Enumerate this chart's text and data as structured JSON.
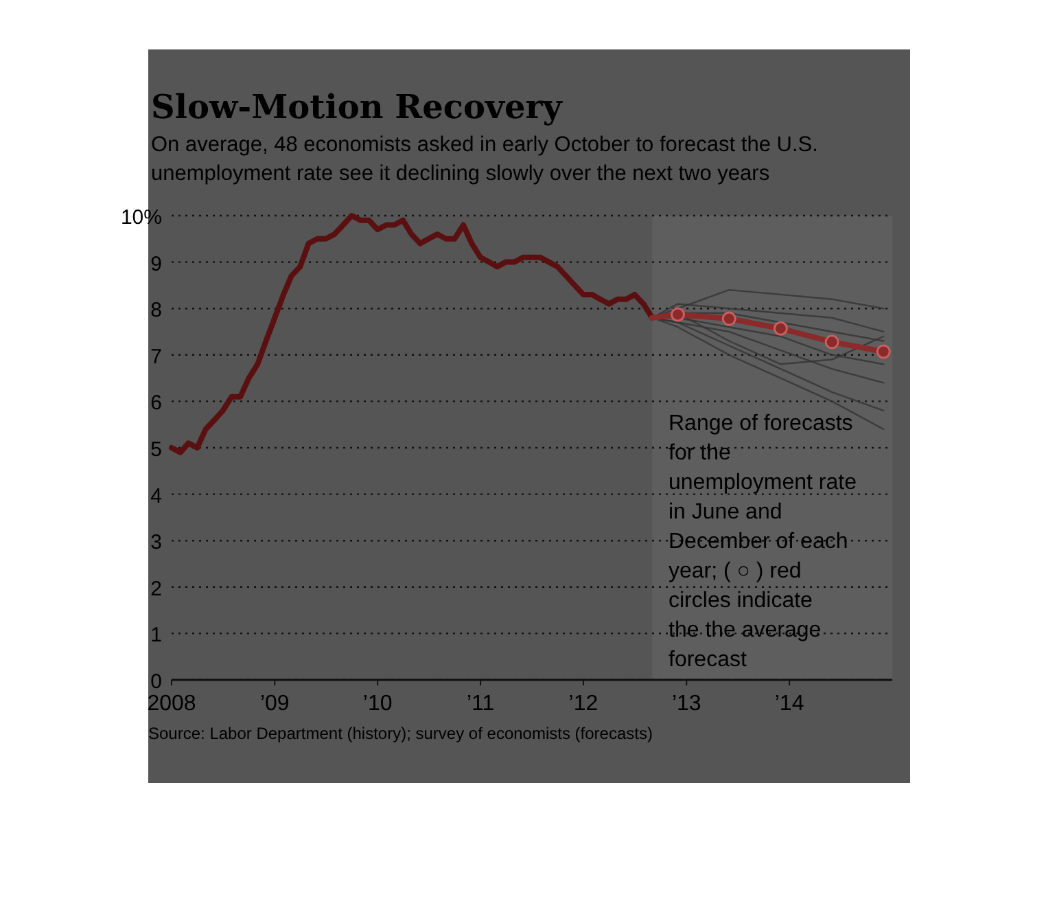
{
  "chart_data": {
    "type": "line",
    "title": "Slow-Motion Recovery",
    "subtitle": "On average, 48 economists asked in early October to forecast the U.S. unemployment rate see it declining slowly over the next two years",
    "xlim": [
      "2008-01",
      "2015-01"
    ],
    "xticks": [
      {
        "value": "2008-01",
        "label": "2008"
      },
      {
        "value": "2009-01",
        "label": "’09"
      },
      {
        "value": "2010-01",
        "label": "’10"
      },
      {
        "value": "2011-01",
        "label": "’11"
      },
      {
        "value": "2012-01",
        "label": "’12"
      },
      {
        "value": "2013-01",
        "label": "’13"
      },
      {
        "value": "2014-01",
        "label": "’14"
      }
    ],
    "ylim": [
      0,
      10
    ],
    "yticks": [
      0,
      1,
      2,
      3,
      4,
      5,
      6,
      7,
      8,
      9,
      {
        "value": 10,
        "label": "10%"
      }
    ],
    "grid": "y",
    "bands": [
      {
        "axis": "x",
        "from": "2012-09",
        "to": "2015-01",
        "color": "#5e5e5e"
      }
    ],
    "series": [
      {
        "color": "#333333",
        "x": [
          "2012-09",
          "2012-12",
          "2013-06",
          "2013-12",
          "2014-06",
          "2014-12"
        ],
        "values": [
          7.8,
          8.0,
          8.4,
          8.3,
          8.2,
          8.0
        ]
      },
      {
        "color": "#333333",
        "x": [
          "2012-09",
          "2012-12",
          "2013-06",
          "2013-12",
          "2014-06",
          "2014-12"
        ],
        "values": [
          7.8,
          8.1,
          8.0,
          7.9,
          7.8,
          7.5
        ]
      },
      {
        "color": "#333333",
        "x": [
          "2012-09",
          "2012-12",
          "2013-06",
          "2013-12",
          "2014-06",
          "2014-12"
        ],
        "values": [
          7.8,
          7.9,
          7.9,
          7.7,
          7.5,
          7.3
        ]
      },
      {
        "color": "#333333",
        "x": [
          "2012-09",
          "2012-12",
          "2013-06",
          "2013-12",
          "2014-06",
          "2014-12"
        ],
        "values": [
          7.8,
          7.8,
          7.6,
          7.4,
          7.0,
          6.8
        ]
      },
      {
        "color": "#333333",
        "x": [
          "2012-09",
          "2012-12",
          "2013-06",
          "2013-12",
          "2014-06",
          "2014-12"
        ],
        "values": [
          7.8,
          7.7,
          7.5,
          7.1,
          6.7,
          6.4
        ]
      },
      {
        "color": "#333333",
        "x": [
          "2012-09",
          "2012-12",
          "2013-06",
          "2013-12",
          "2014-06",
          "2014-12"
        ],
        "values": [
          7.8,
          7.9,
          7.3,
          6.8,
          6.9,
          7.4
        ]
      },
      {
        "color": "#333333",
        "x": [
          "2012-09",
          "2012-12",
          "2013-06",
          "2013-12",
          "2014-06",
          "2014-12"
        ],
        "values": [
          7.8,
          7.7,
          7.2,
          6.7,
          6.2,
          5.8
        ]
      },
      {
        "color": "#333333",
        "x": [
          "2012-09",
          "2012-12",
          "2013-06",
          "2013-12",
          "2014-06",
          "2014-12"
        ],
        "values": [
          7.8,
          7.6,
          7.0,
          6.5,
          6.0,
          5.4
        ]
      },
      {
        "color": "#5a1010",
        "x": [
          "2008-01",
          "2008-02",
          "2008-03",
          "2008-04",
          "2008-05",
          "2008-06",
          "2008-07",
          "2008-08",
          "2008-09",
          "2008-10",
          "2008-11",
          "2008-12",
          "2009-01",
          "2009-02",
          "2009-03",
          "2009-04",
          "2009-05",
          "2009-06",
          "2009-07",
          "2009-08",
          "2009-09",
          "2009-10",
          "2009-11",
          "2009-12",
          "2010-01",
          "2010-02",
          "2010-03",
          "2010-04",
          "2010-05",
          "2010-06",
          "2010-07",
          "2010-08",
          "2010-09",
          "2010-10",
          "2010-11",
          "2010-12",
          "2011-01",
          "2011-02",
          "2011-03",
          "2011-04",
          "2011-05",
          "2011-06",
          "2011-07",
          "2011-08",
          "2011-09",
          "2011-10",
          "2011-11",
          "2011-12",
          "2012-01",
          "2012-02",
          "2012-03",
          "2012-04",
          "2012-05",
          "2012-06",
          "2012-07",
          "2012-08",
          "2012-09"
        ],
        "values": [
          5.0,
          4.9,
          5.1,
          5.0,
          5.4,
          5.6,
          5.8,
          6.1,
          6.1,
          6.5,
          6.8,
          7.3,
          7.8,
          8.3,
          8.7,
          8.9,
          9.4,
          9.5,
          9.5,
          9.6,
          9.8,
          10.0,
          9.9,
          9.9,
          9.7,
          9.8,
          9.8,
          9.9,
          9.6,
          9.4,
          9.5,
          9.6,
          9.5,
          9.5,
          9.8,
          9.4,
          9.1,
          9.0,
          8.9,
          9.0,
          9.0,
          9.1,
          9.1,
          9.1,
          9.0,
          8.9,
          8.7,
          8.5,
          8.3,
          8.3,
          8.2,
          8.1,
          8.2,
          8.2,
          8.3,
          8.1,
          7.8
        ]
      },
      {
        "color": "#8b2a2a",
        "marker": "circle",
        "x": [
          "2012-09",
          "2012-12",
          "2013-06",
          "2013-12",
          "2014-06",
          "2014-12"
        ],
        "values": [
          7.8,
          7.87,
          7.78,
          7.57,
          7.28,
          7.07
        ]
      }
    ],
    "annotations": [
      "Source: Labor Department (history); survey of economists (forecasts)",
      "Range of forecasts for the unemployment rate in June and December of each year; ( ○ ) red circles indicate the the average forecast"
    ]
  }
}
